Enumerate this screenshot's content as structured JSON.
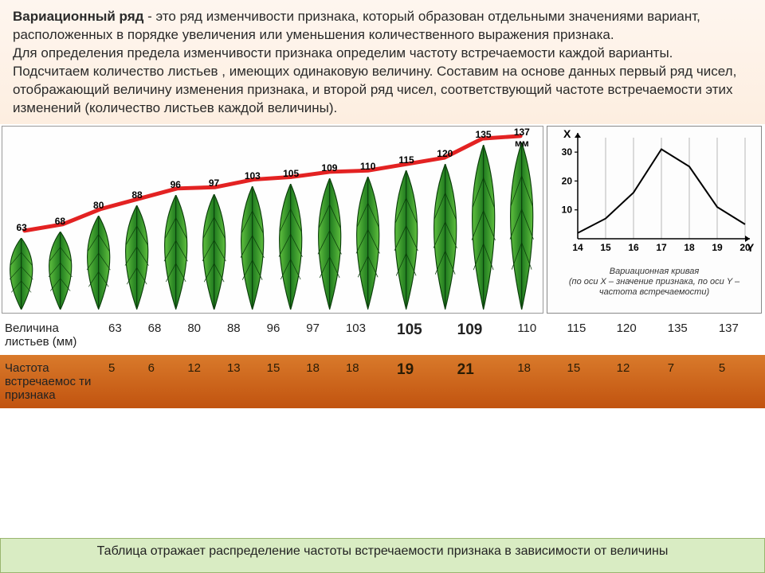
{
  "text": {
    "term": "Вариационный ряд",
    "def": " - это ряд изменчивости признака, который образован отдельными значениями вариант, расположенных в порядке увеличения или уменьшения количественного выражения признака.",
    "para2": "Для определения предела изменчивости признака определим частоту встречаемости каждой варианты. Подсчитаем количество листьев , имеющих одинаковую величину. Составим на основе данных первый ряд чисел, отображающий величину изменения признака, и второй ряд чисел, соответствующий частоте встречаемости этих изменений (количество листьев каждой величины)."
  },
  "leaves": {
    "values": [
      63,
      68,
      80,
      88,
      96,
      97,
      103,
      105,
      109,
      110,
      115,
      120,
      135,
      137
    ],
    "unit_suffix": " мм",
    "leaf_fill_light": "#5fbf3e",
    "leaf_fill_dark": "#1f7a1f",
    "leaf_stroke": "#0a3d0a",
    "trend_color": "#e32222",
    "trend_width": 5,
    "bg": "#fefefe",
    "min_h": 90,
    "max_h": 210
  },
  "curve": {
    "x_label": "Y",
    "y_label": "X",
    "x_ticks": [
      14,
      15,
      16,
      17,
      18,
      19,
      20
    ],
    "y_ticks": [
      10,
      20,
      30
    ],
    "points": [
      {
        "x": 14,
        "y": 2
      },
      {
        "x": 15,
        "y": 7
      },
      {
        "x": 16,
        "y": 16
      },
      {
        "x": 17,
        "y": 31
      },
      {
        "x": 18,
        "y": 25
      },
      {
        "x": 19,
        "y": 11
      },
      {
        "x": 20,
        "y": 5
      }
    ],
    "title": "Вариационная кривая",
    "caption": "(по оси X – значение признака, по оси Y – частота встречаемости)",
    "axis_color": "#000000",
    "grid_color": "#888888",
    "line_color": "#000000",
    "line_width": 2,
    "bg": "#fdfdfd"
  },
  "table": {
    "row1_label": "Величина листьев (мм)",
    "row2_label": "Частота встречаемос ти признака",
    "sizes": [
      63,
      68,
      80,
      88,
      96,
      97,
      103,
      105,
      109,
      110,
      115,
      120,
      135,
      137
    ],
    "freqs": [
      5,
      6,
      12,
      13,
      15,
      18,
      18,
      19,
      21,
      18,
      15,
      12,
      7,
      5
    ],
    "highlight_indices": [
      7,
      8
    ],
    "row1_bg": "#ffffff",
    "row2_bg": "#d97a2b"
  },
  "footer": "Таблица отражает распределение частоты встречаемости признака в зависимости от величины"
}
